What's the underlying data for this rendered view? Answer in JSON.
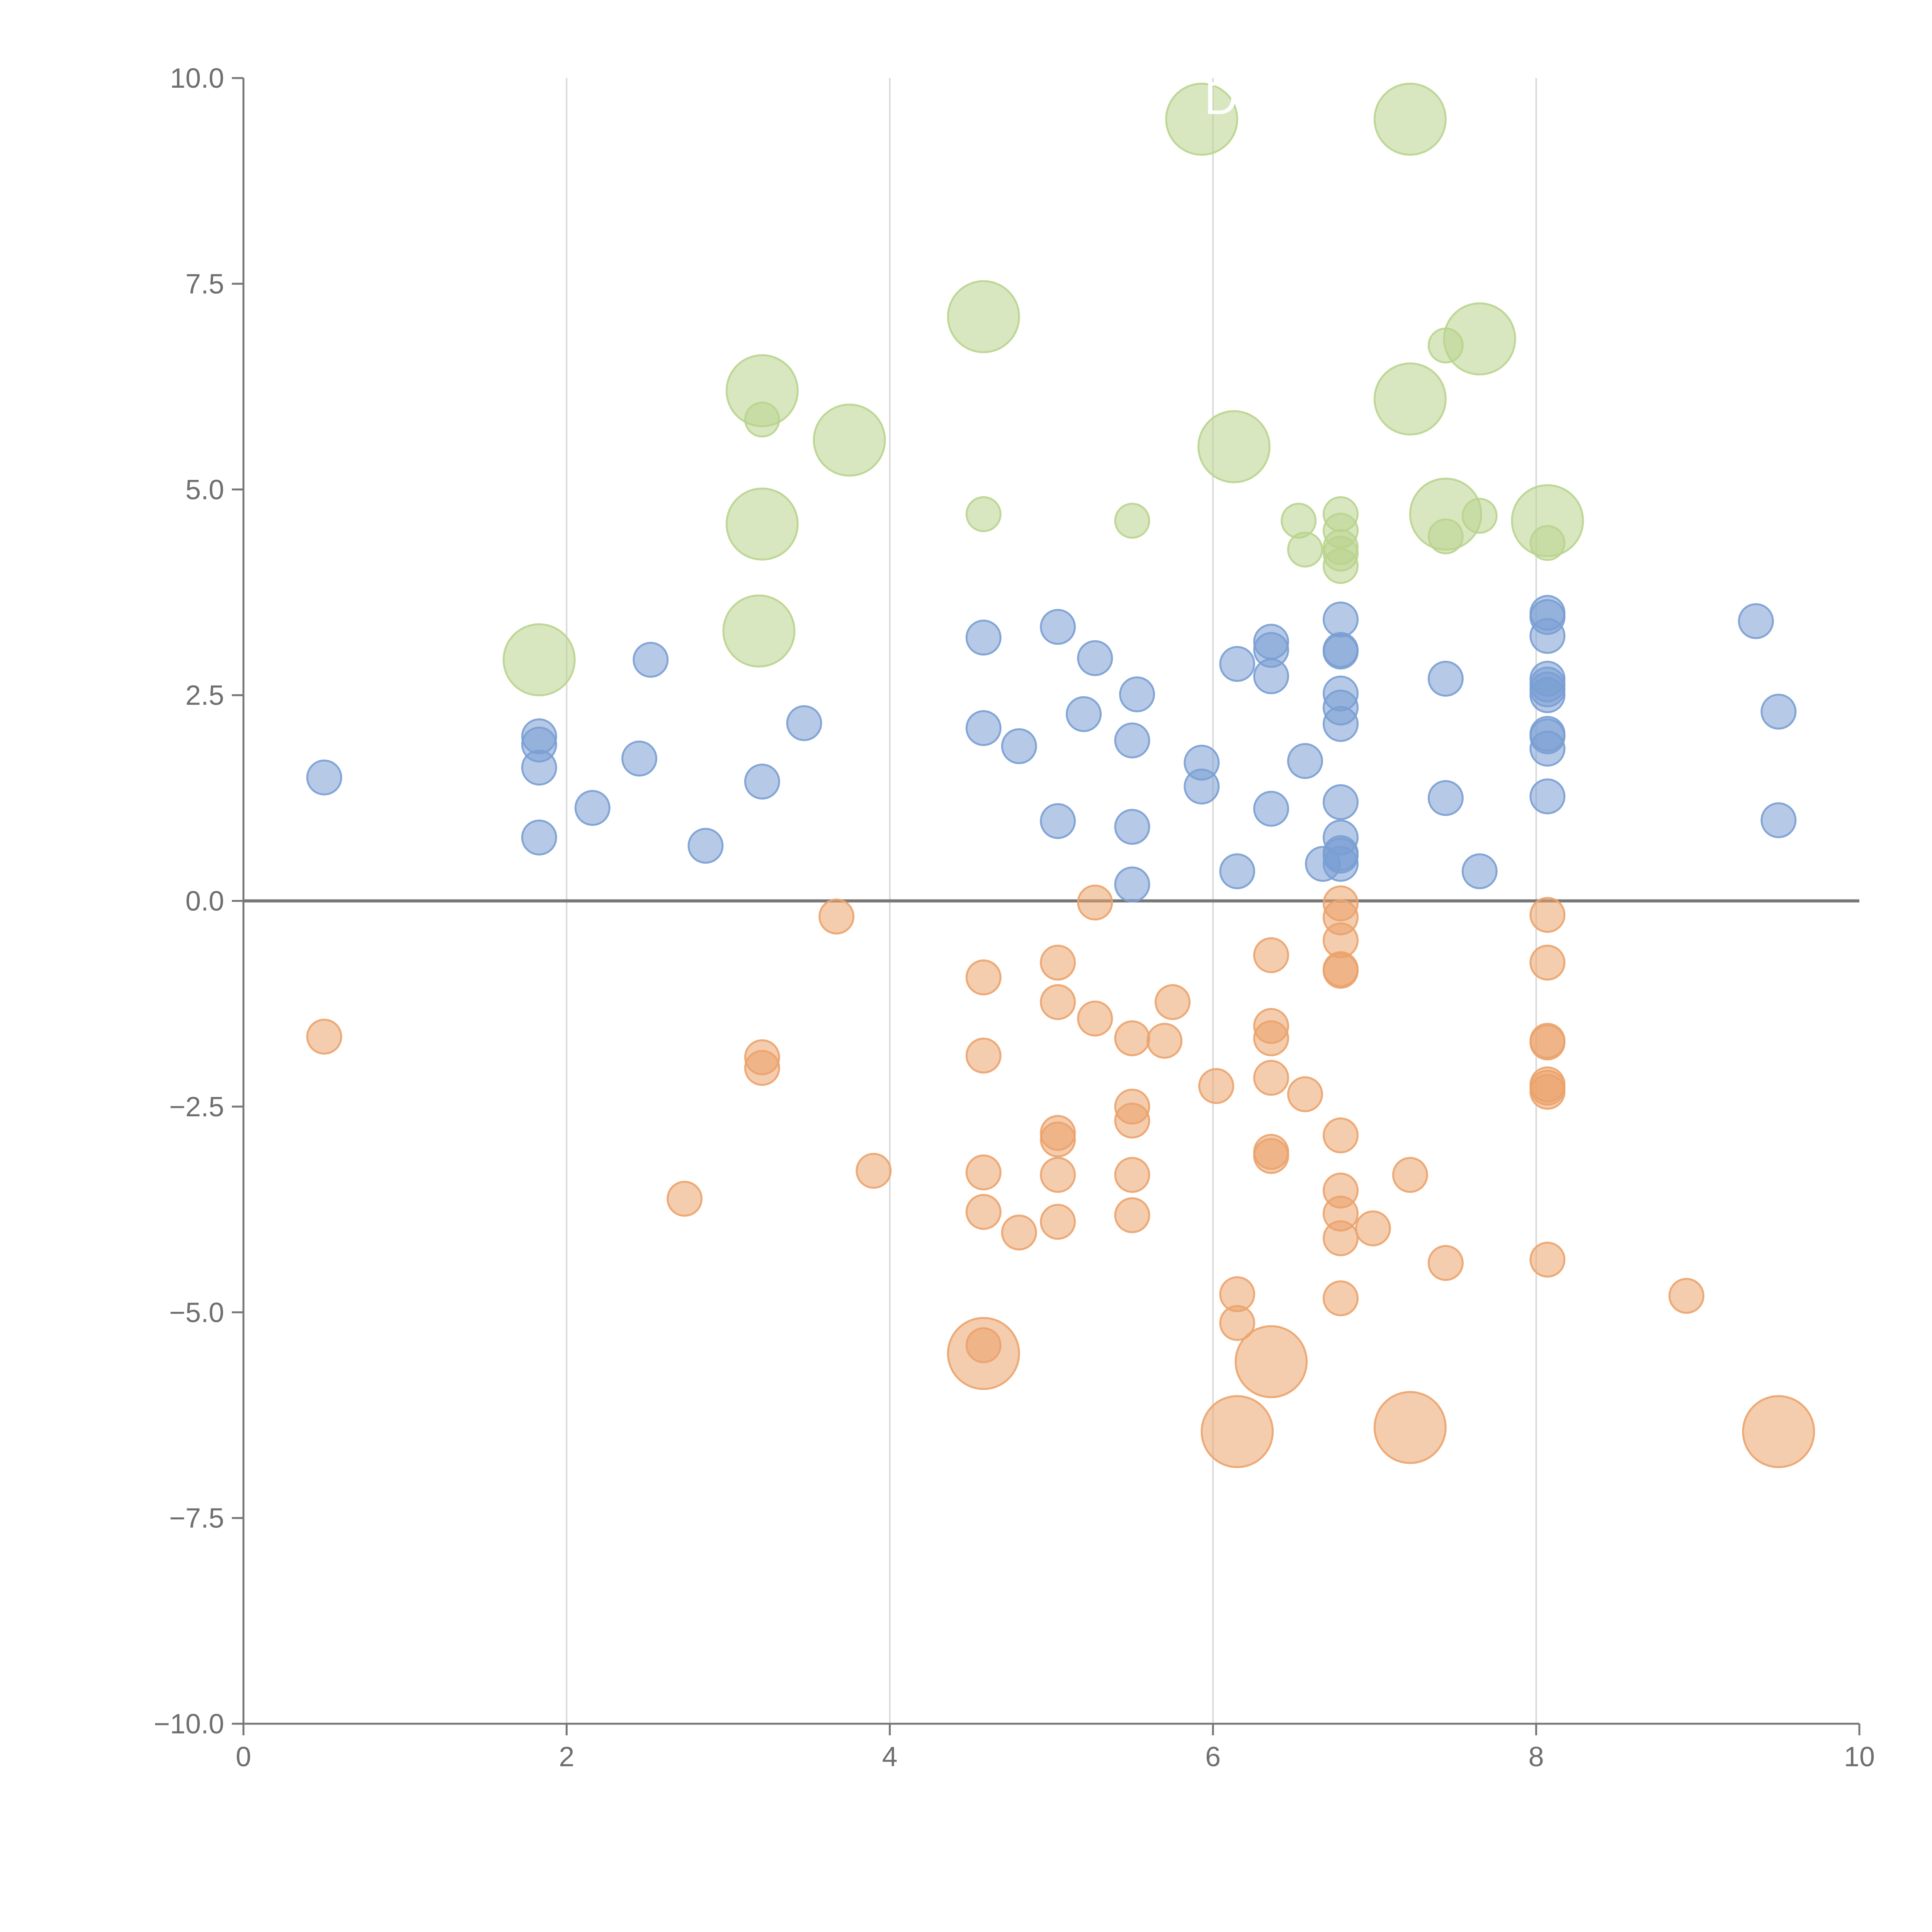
{
  "chart_data": {
    "type": "scatter",
    "title": "",
    "xlabel": "",
    "ylabel": "",
    "xlim": [
      0,
      10
    ],
    "ylim": [
      -10,
      10
    ],
    "x_ticks": [
      "0",
      "2",
      "4",
      "6",
      "8",
      "10"
    ],
    "y_ticks": [
      "10.0",
      "7.5",
      "5.0",
      "2.5",
      "0.0",
      "−2.5",
      "−5.0",
      "−7.5",
      "−10.0"
    ],
    "grid": "vertical",
    "zero_line": 0,
    "colors": {
      "blue": "#7A9FD3",
      "orange": "#EBA36C",
      "green": "#B9D48E",
      "axis": "#777777",
      "grid": "#d9d9d9"
    },
    "series": [
      {
        "name": "blue",
        "color": "#7A9FD3",
        "points": [
          {
            "x": 0.5,
            "y": 1.5,
            "s": 1
          },
          {
            "x": 1.83,
            "y": 2.0,
            "s": 1
          },
          {
            "x": 1.83,
            "y": 1.9,
            "s": 1
          },
          {
            "x": 1.83,
            "y": 1.62,
            "s": 1
          },
          {
            "x": 1.83,
            "y": 0.77,
            "s": 1
          },
          {
            "x": 2.16,
            "y": 1.13,
            "s": 1
          },
          {
            "x": 2.45,
            "y": 1.73,
            "s": 1
          },
          {
            "x": 2.52,
            "y": 2.93,
            "s": 1
          },
          {
            "x": 2.86,
            "y": 0.67,
            "s": 1
          },
          {
            "x": 3.21,
            "y": 1.45,
            "s": 1
          },
          {
            "x": 3.47,
            "y": 2.16,
            "s": 1
          },
          {
            "x": 4.58,
            "y": 3.2,
            "s": 1
          },
          {
            "x": 4.58,
            "y": 2.1,
            "s": 1
          },
          {
            "x": 4.8,
            "y": 1.88,
            "s": 1
          },
          {
            "x": 5.04,
            "y": 3.33,
            "s": 1
          },
          {
            "x": 5.04,
            "y": 0.97,
            "s": 1
          },
          {
            "x": 5.2,
            "y": 2.27,
            "s": 1
          },
          {
            "x": 5.27,
            "y": 2.95,
            "s": 1
          },
          {
            "x": 5.5,
            "y": 1.95,
            "s": 1
          },
          {
            "x": 5.5,
            "y": 0.9,
            "s": 1
          },
          {
            "x": 5.5,
            "y": 0.2,
            "s": 1
          },
          {
            "x": 5.53,
            "y": 2.51,
            "s": 1
          },
          {
            "x": 5.93,
            "y": 1.68,
            "s": 1
          },
          {
            "x": 5.93,
            "y": 1.39,
            "s": 1
          },
          {
            "x": 6.15,
            "y": 2.88,
            "s": 1
          },
          {
            "x": 6.15,
            "y": 0.36,
            "s": 1
          },
          {
            "x": 6.36,
            "y": 3.15,
            "s": 1
          },
          {
            "x": 6.36,
            "y": 3.05,
            "s": 1
          },
          {
            "x": 6.36,
            "y": 2.73,
            "s": 1
          },
          {
            "x": 6.36,
            "y": 1.12,
            "s": 1
          },
          {
            "x": 6.57,
            "y": 1.7,
            "s": 1
          },
          {
            "x": 6.68,
            "y": 0.45,
            "s": 1
          },
          {
            "x": 6.79,
            "y": 3.42,
            "s": 1
          },
          {
            "x": 6.79,
            "y": 3.05,
            "s": 1
          },
          {
            "x": 6.79,
            "y": 3.03,
            "s": 1
          },
          {
            "x": 6.79,
            "y": 2.52,
            "s": 1
          },
          {
            "x": 6.79,
            "y": 2.35,
            "s": 1
          },
          {
            "x": 6.79,
            "y": 2.15,
            "s": 1
          },
          {
            "x": 6.79,
            "y": 1.2,
            "s": 1
          },
          {
            "x": 6.79,
            "y": 0.77,
            "s": 1
          },
          {
            "x": 6.79,
            "y": 0.58,
            "s": 1
          },
          {
            "x": 6.79,
            "y": 0.55,
            "s": 1
          },
          {
            "x": 6.79,
            "y": 0.45,
            "s": 1
          },
          {
            "x": 7.44,
            "y": 2.7,
            "s": 1
          },
          {
            "x": 7.44,
            "y": 1.25,
            "s": 1
          },
          {
            "x": 7.65,
            "y": 0.36,
            "s": 1
          },
          {
            "x": 8.07,
            "y": 3.5,
            "s": 1
          },
          {
            "x": 8.07,
            "y": 3.45,
            "s": 1
          },
          {
            "x": 8.07,
            "y": 3.22,
            "s": 1
          },
          {
            "x": 8.07,
            "y": 2.7,
            "s": 1
          },
          {
            "x": 8.07,
            "y": 2.63,
            "s": 1
          },
          {
            "x": 8.07,
            "y": 2.57,
            "s": 1
          },
          {
            "x": 8.07,
            "y": 2.5,
            "s": 1
          },
          {
            "x": 8.07,
            "y": 2.03,
            "s": 1
          },
          {
            "x": 8.07,
            "y": 2.0,
            "s": 1
          },
          {
            "x": 8.07,
            "y": 1.85,
            "s": 1
          },
          {
            "x": 8.07,
            "y": 1.27,
            "s": 1
          },
          {
            "x": 9.36,
            "y": 3.4,
            "s": 1
          },
          {
            "x": 9.5,
            "y": 2.3,
            "s": 1
          },
          {
            "x": 9.5,
            "y": 0.98,
            "s": 1
          }
        ]
      },
      {
        "name": "orange",
        "color": "#EBA36C",
        "points": [
          {
            "x": 0.5,
            "y": -1.65,
            "s": 1
          },
          {
            "x": 2.73,
            "y": -3.62,
            "s": 1
          },
          {
            "x": 3.21,
            "y": -1.9,
            "s": 1
          },
          {
            "x": 3.21,
            "y": -2.03,
            "s": 1
          },
          {
            "x": 3.67,
            "y": -0.19,
            "s": 1
          },
          {
            "x": 3.9,
            "y": -3.28,
            "s": 1
          },
          {
            "x": 4.58,
            "y": -0.93,
            "s": 1
          },
          {
            "x": 4.58,
            "y": -1.88,
            "s": 1
          },
          {
            "x": 4.58,
            "y": -3.3,
            "s": 1
          },
          {
            "x": 4.58,
            "y": -3.78,
            "s": 1
          },
          {
            "x": 4.58,
            "y": -5.4,
            "s": 1
          },
          {
            "x": 4.58,
            "y": -5.5,
            "s": 2
          },
          {
            "x": 4.8,
            "y": -4.03,
            "s": 1
          },
          {
            "x": 5.04,
            "y": -0.75,
            "s": 1
          },
          {
            "x": 5.04,
            "y": -1.23,
            "s": 1
          },
          {
            "x": 5.04,
            "y": -2.82,
            "s": 1
          },
          {
            "x": 5.04,
            "y": -2.9,
            "s": 1
          },
          {
            "x": 5.04,
            "y": -3.33,
            "s": 1
          },
          {
            "x": 5.04,
            "y": -3.9,
            "s": 1
          },
          {
            "x": 5.27,
            "y": -0.02,
            "s": 1
          },
          {
            "x": 5.27,
            "y": -1.43,
            "s": 1
          },
          {
            "x": 5.5,
            "y": -1.67,
            "s": 1
          },
          {
            "x": 5.5,
            "y": -2.5,
            "s": 1
          },
          {
            "x": 5.5,
            "y": -2.67,
            "s": 1
          },
          {
            "x": 5.5,
            "y": -3.33,
            "s": 1
          },
          {
            "x": 5.5,
            "y": -3.82,
            "s": 1
          },
          {
            "x": 5.7,
            "y": -1.7,
            "s": 1
          },
          {
            "x": 5.75,
            "y": -1.23,
            "s": 1
          },
          {
            "x": 6.02,
            "y": -2.25,
            "s": 1
          },
          {
            "x": 6.15,
            "y": -4.78,
            "s": 1
          },
          {
            "x": 6.15,
            "y": -5.13,
            "s": 1
          },
          {
            "x": 6.15,
            "y": -6.45,
            "s": 2
          },
          {
            "x": 6.36,
            "y": -0.66,
            "s": 1
          },
          {
            "x": 6.36,
            "y": -1.52,
            "s": 1
          },
          {
            "x": 6.36,
            "y": -1.67,
            "s": 1
          },
          {
            "x": 6.36,
            "y": -2.15,
            "s": 1
          },
          {
            "x": 6.36,
            "y": -3.05,
            "s": 1
          },
          {
            "x": 6.36,
            "y": -3.1,
            "s": 1
          },
          {
            "x": 6.36,
            "y": -5.6,
            "s": 2
          },
          {
            "x": 6.57,
            "y": -2.35,
            "s": 1
          },
          {
            "x": 6.79,
            "y": -0.03,
            "s": 1
          },
          {
            "x": 6.79,
            "y": -0.2,
            "s": 1
          },
          {
            "x": 6.79,
            "y": -0.48,
            "s": 1
          },
          {
            "x": 6.79,
            "y": -0.83,
            "s": 1
          },
          {
            "x": 6.79,
            "y": -0.85,
            "s": 1
          },
          {
            "x": 6.79,
            "y": -2.85,
            "s": 1
          },
          {
            "x": 6.79,
            "y": -3.52,
            "s": 1
          },
          {
            "x": 6.79,
            "y": -3.8,
            "s": 1
          },
          {
            "x": 6.79,
            "y": -4.1,
            "s": 1
          },
          {
            "x": 6.79,
            "y": -4.83,
            "s": 1
          },
          {
            "x": 6.99,
            "y": -3.98,
            "s": 1
          },
          {
            "x": 7.22,
            "y": -3.33,
            "s": 1
          },
          {
            "x": 7.22,
            "y": -6.4,
            "s": 2
          },
          {
            "x": 7.44,
            "y": -4.4,
            "s": 1
          },
          {
            "x": 8.07,
            "y": -0.17,
            "s": 1
          },
          {
            "x": 8.07,
            "y": -0.75,
            "s": 1
          },
          {
            "x": 8.07,
            "y": -1.7,
            "s": 1
          },
          {
            "x": 8.07,
            "y": -1.72,
            "s": 1
          },
          {
            "x": 8.07,
            "y": -2.23,
            "s": 1
          },
          {
            "x": 8.07,
            "y": -2.27,
            "s": 1
          },
          {
            "x": 8.07,
            "y": -2.32,
            "s": 1
          },
          {
            "x": 8.07,
            "y": -4.36,
            "s": 1
          },
          {
            "x": 8.93,
            "y": -4.8,
            "s": 1
          },
          {
            "x": 9.5,
            "y": -6.45,
            "s": 2
          }
        ]
      },
      {
        "name": "green",
        "color": "#B9D48E",
        "points": [
          {
            "x": 1.83,
            "y": 2.93,
            "s": 2
          },
          {
            "x": 3.21,
            "y": 6.2,
            "s": 2
          },
          {
            "x": 3.21,
            "y": 5.85,
            "s": 1
          },
          {
            "x": 3.21,
            "y": 4.58,
            "s": 2
          },
          {
            "x": 3.19,
            "y": 3.28,
            "s": 2
          },
          {
            "x": 3.75,
            "y": 5.6,
            "s": 2
          },
          {
            "x": 4.58,
            "y": 7.1,
            "s": 2
          },
          {
            "x": 4.58,
            "y": 4.7,
            "s": 1
          },
          {
            "x": 5.5,
            "y": 4.62,
            "s": 1
          },
          {
            "x": 5.93,
            "y": 9.5,
            "s": 2
          },
          {
            "x": 6.13,
            "y": 5.52,
            "s": 2
          },
          {
            "x": 6.53,
            "y": 4.62,
            "s": 1
          },
          {
            "x": 6.57,
            "y": 4.27,
            "s": 1
          },
          {
            "x": 6.79,
            "y": 4.7,
            "s": 1
          },
          {
            "x": 6.79,
            "y": 4.5,
            "s": 1
          },
          {
            "x": 6.79,
            "y": 4.3,
            "s": 1
          },
          {
            "x": 6.79,
            "y": 4.22,
            "s": 1
          },
          {
            "x": 6.79,
            "y": 4.07,
            "s": 1
          },
          {
            "x": 7.22,
            "y": 9.5,
            "s": 2
          },
          {
            "x": 7.22,
            "y": 6.1,
            "s": 2
          },
          {
            "x": 7.44,
            "y": 6.75,
            "s": 1
          },
          {
            "x": 7.44,
            "y": 4.7,
            "s": 2
          },
          {
            "x": 7.44,
            "y": 4.43,
            "s": 1
          },
          {
            "x": 7.65,
            "y": 6.83,
            "s": 2
          },
          {
            "x": 7.65,
            "y": 4.68,
            "s": 1
          },
          {
            "x": 8.07,
            "y": 4.62,
            "s": 2
          },
          {
            "x": 8.07,
            "y": 4.35,
            "s": 1
          }
        ]
      }
    ],
    "annotations": [
      {
        "text": "D",
        "x": 6.05,
        "y": 9.75,
        "color": "#ffffff"
      }
    ]
  }
}
